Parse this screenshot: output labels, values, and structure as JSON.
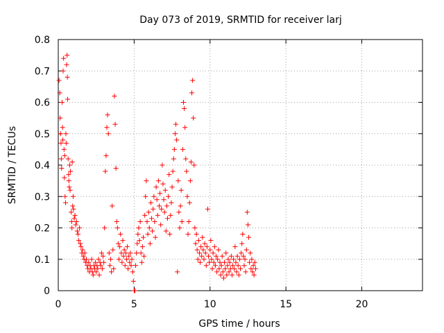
{
  "chart_data": {
    "type": "scatter",
    "title": "Day 073 of 2019, SRMTID for receiver larj",
    "xlabel": "GPS time / hours",
    "ylabel": "SRMTID / TECUs",
    "xlim": [
      0,
      24
    ],
    "ylim": [
      0,
      0.8
    ],
    "xticks": [
      0,
      5,
      10,
      15,
      20
    ],
    "yticks": [
      0,
      0.1,
      0.2,
      0.3,
      0.4,
      0.5,
      0.6,
      0.7,
      0.8
    ],
    "xtick_labels": [
      "0",
      "5",
      "10",
      "15",
      "20"
    ],
    "ytick_labels": [
      "0",
      "0.1",
      "0.2",
      "0.3",
      "0.4",
      "0.5",
      "0.6",
      "0.7",
      "0.8"
    ],
    "grid": true,
    "marker": "+",
    "color": "#ff0000",
    "series": [
      {
        "name": "SRMTID",
        "points": [
          [
            0.05,
            0.67
          ],
          [
            0.1,
            0.63
          ],
          [
            0.12,
            0.55
          ],
          [
            0.15,
            0.5
          ],
          [
            0.18,
            0.47
          ],
          [
            0.2,
            0.42
          ],
          [
            0.22,
            0.39
          ],
          [
            0.25,
            0.6
          ],
          [
            0.28,
            0.52
          ],
          [
            0.3,
            0.48
          ],
          [
            0.32,
            0.7
          ],
          [
            0.35,
            0.74
          ],
          [
            0.38,
            0.45
          ],
          [
            0.4,
            0.36
          ],
          [
            0.42,
            0.43
          ],
          [
            0.45,
            0.3
          ],
          [
            0.48,
            0.28
          ],
          [
            0.5,
            0.5
          ],
          [
            0.52,
            0.47
          ],
          [
            0.55,
            0.72
          ],
          [
            0.58,
            0.75
          ],
          [
            0.6,
            0.68
          ],
          [
            0.62,
            0.61
          ],
          [
            0.65,
            0.42
          ],
          [
            0.68,
            0.37
          ],
          [
            0.7,
            0.35
          ],
          [
            0.72,
            0.33
          ],
          [
            0.75,
            0.4
          ],
          [
            0.78,
            0.32
          ],
          [
            0.8,
            0.38
          ],
          [
            0.85,
            0.25
          ],
          [
            0.88,
            0.22
          ],
          [
            0.9,
            0.2
          ],
          [
            0.92,
            0.41
          ],
          [
            0.95,
            0.27
          ],
          [
            0.98,
            0.3
          ],
          [
            1.0,
            0.26
          ],
          [
            1.05,
            0.23
          ],
          [
            1.1,
            0.24
          ],
          [
            1.15,
            0.21
          ],
          [
            1.2,
            0.22
          ],
          [
            1.25,
            0.19
          ],
          [
            1.3,
            0.18
          ],
          [
            1.35,
            0.16
          ],
          [
            1.4,
            0.2
          ],
          [
            1.45,
            0.15
          ],
          [
            1.5,
            0.14
          ],
          [
            1.55,
            0.12
          ],
          [
            1.6,
            0.13
          ],
          [
            1.65,
            0.11
          ],
          [
            1.7,
            0.1
          ],
          [
            1.75,
            0.12
          ],
          [
            1.8,
            0.09
          ],
          [
            1.85,
            0.1
          ],
          [
            1.9,
            0.08
          ],
          [
            1.95,
            0.07
          ],
          [
            2.0,
            0.09
          ],
          [
            2.05,
            0.06
          ],
          [
            2.1,
            0.08
          ],
          [
            2.15,
            0.07
          ],
          [
            2.2,
            0.1
          ],
          [
            2.25,
            0.06
          ],
          [
            2.3,
            0.05
          ],
          [
            2.35,
            0.08
          ],
          [
            2.4,
            0.07
          ],
          [
            2.45,
            0.09
          ],
          [
            2.5,
            0.06
          ],
          [
            2.55,
            0.08
          ],
          [
            2.6,
            0.07
          ],
          [
            2.65,
            0.1
          ],
          [
            2.7,
            0.05
          ],
          [
            2.75,
            0.09
          ],
          [
            2.8,
            0.08
          ],
          [
            2.85,
            0.12
          ],
          [
            2.9,
            0.07
          ],
          [
            2.95,
            0.11
          ],
          [
            3.0,
            0.09
          ],
          [
            3.05,
            0.2
          ],
          [
            3.1,
            0.38
          ],
          [
            3.15,
            0.43
          ],
          [
            3.2,
            0.52
          ],
          [
            3.25,
            0.56
          ],
          [
            3.3,
            0.5
          ],
          [
            3.35,
            0.12
          ],
          [
            3.4,
            0.08
          ],
          [
            3.45,
            0.1
          ],
          [
            3.5,
            0.06
          ],
          [
            3.55,
            0.27
          ],
          [
            3.6,
            0.13
          ],
          [
            3.65,
            0.07
          ],
          [
            3.7,
            0.62
          ],
          [
            3.75,
            0.53
          ],
          [
            3.8,
            0.39
          ],
          [
            3.85,
            0.22
          ],
          [
            3.9,
            0.2
          ],
          [
            3.95,
            0.15
          ],
          [
            4.0,
            0.1
          ],
          [
            4.05,
            0.14
          ],
          [
            4.1,
            0.18
          ],
          [
            4.15,
            0.12
          ],
          [
            4.2,
            0.09
          ],
          [
            4.25,
            0.16
          ],
          [
            4.3,
            0.11
          ],
          [
            4.35,
            0.13
          ],
          [
            4.4,
            0.08
          ],
          [
            4.45,
            0.12
          ],
          [
            4.5,
            0.1
          ],
          [
            4.55,
            0.14
          ],
          [
            4.6,
            0.07
          ],
          [
            4.65,
            0.11
          ],
          [
            4.7,
            0.09
          ],
          [
            4.75,
            0.12
          ],
          [
            4.8,
            0.08
          ],
          [
            4.85,
            0.1
          ],
          [
            4.9,
            0.06
          ],
          [
            4.95,
            0.03
          ],
          [
            5.0,
            0.0
          ],
          [
            5.05,
            0.0
          ],
          [
            5.1,
            0.08
          ],
          [
            5.15,
            0.12
          ],
          [
            5.2,
            0.15
          ],
          [
            5.25,
            0.18
          ],
          [
            5.3,
            0.2
          ],
          [
            5.35,
            0.16
          ],
          [
            5.4,
            0.22
          ],
          [
            5.45,
            0.12
          ],
          [
            5.5,
            0.09
          ],
          [
            5.55,
            0.14
          ],
          [
            5.6,
            0.17
          ],
          [
            5.65,
            0.11
          ],
          [
            5.7,
            0.24
          ],
          [
            5.75,
            0.3
          ],
          [
            5.8,
            0.35
          ],
          [
            5.85,
            0.22
          ],
          [
            5.9,
            0.18
          ],
          [
            5.95,
            0.25
          ],
          [
            6.0,
            0.2
          ],
          [
            6.05,
            0.15
          ],
          [
            6.1,
            0.28
          ],
          [
            6.15,
            0.23
          ],
          [
            6.2,
            0.19
          ],
          [
            6.25,
            0.26
          ],
          [
            6.3,
            0.3
          ],
          [
            6.35,
            0.22
          ],
          [
            6.4,
            0.17
          ],
          [
            6.45,
            0.33
          ],
          [
            6.5,
            0.29
          ],
          [
            6.55,
            0.24
          ],
          [
            6.6,
            0.35
          ],
          [
            6.65,
            0.27
          ],
          [
            6.7,
            0.31
          ],
          [
            6.75,
            0.21
          ],
          [
            6.8,
            0.26
          ],
          [
            6.85,
            0.4
          ],
          [
            6.9,
            0.34
          ],
          [
            6.95,
            0.29
          ],
          [
            7.0,
            0.25
          ],
          [
            7.05,
            0.32
          ],
          [
            7.1,
            0.19
          ],
          [
            7.15,
            0.27
          ],
          [
            7.2,
            0.23
          ],
          [
            7.25,
            0.3
          ],
          [
            7.3,
            0.37
          ],
          [
            7.35,
            0.18
          ],
          [
            7.4,
            0.24
          ],
          [
            7.45,
            0.28
          ],
          [
            7.5,
            0.33
          ],
          [
            7.55,
            0.38
          ],
          [
            7.6,
            0.42
          ],
          [
            7.65,
            0.45
          ],
          [
            7.7,
            0.5
          ],
          [
            7.75,
            0.53
          ],
          [
            7.8,
            0.48
          ],
          [
            7.85,
            0.06
          ],
          [
            7.9,
            0.35
          ],
          [
            7.95,
            0.25
          ],
          [
            8.0,
            0.2
          ],
          [
            8.05,
            0.27
          ],
          [
            8.1,
            0.32
          ],
          [
            8.15,
            0.22
          ],
          [
            8.2,
            0.45
          ],
          [
            8.25,
            0.6
          ],
          [
            8.3,
            0.58
          ],
          [
            8.35,
            0.52
          ],
          [
            8.4,
            0.42
          ],
          [
            8.45,
            0.38
          ],
          [
            8.5,
            0.3
          ],
          [
            8.55,
            0.18
          ],
          [
            8.6,
            0.22
          ],
          [
            8.65,
            0.28
          ],
          [
            8.7,
            0.35
          ],
          [
            8.75,
            0.41
          ],
          [
            8.8,
            0.63
          ],
          [
            8.85,
            0.67
          ],
          [
            8.9,
            0.55
          ],
          [
            8.95,
            0.4
          ],
          [
            9.0,
            0.2
          ],
          [
            9.05,
            0.15
          ],
          [
            9.1,
            0.18
          ],
          [
            9.15,
            0.13
          ],
          [
            9.2,
            0.1
          ],
          [
            9.25,
            0.16
          ],
          [
            9.3,
            0.12
          ],
          [
            9.35,
            0.09
          ],
          [
            9.4,
            0.14
          ],
          [
            9.45,
            0.11
          ],
          [
            9.5,
            0.17
          ],
          [
            9.55,
            0.13
          ],
          [
            9.6,
            0.1
          ],
          [
            9.65,
            0.15
          ],
          [
            9.7,
            0.12
          ],
          [
            9.75,
            0.08
          ],
          [
            9.8,
            0.14
          ],
          [
            9.85,
            0.26
          ],
          [
            9.9,
            0.11
          ],
          [
            9.95,
            0.09
          ],
          [
            10.0,
            0.13
          ],
          [
            10.05,
            0.16
          ],
          [
            10.1,
            0.1
          ],
          [
            10.15,
            0.07
          ],
          [
            10.2,
            0.12
          ],
          [
            10.25,
            0.09
          ],
          [
            10.3,
            0.14
          ],
          [
            10.35,
            0.08
          ],
          [
            10.4,
            0.11
          ],
          [
            10.45,
            0.06
          ],
          [
            10.5,
            0.1
          ],
          [
            10.55,
            0.13
          ],
          [
            10.6,
            0.07
          ],
          [
            10.65,
            0.09
          ],
          [
            10.7,
            0.05
          ],
          [
            10.75,
            0.08
          ],
          [
            10.8,
            0.11
          ],
          [
            10.85,
            0.06
          ],
          [
            10.9,
            0.04
          ],
          [
            10.95,
            0.09
          ],
          [
            11.0,
            0.07
          ],
          [
            11.05,
            0.12
          ],
          [
            11.1,
            0.05
          ],
          [
            11.15,
            0.08
          ],
          [
            11.2,
            0.1
          ],
          [
            11.25,
            0.06
          ],
          [
            11.3,
            0.09
          ],
          [
            11.35,
            0.07
          ],
          [
            11.4,
            0.11
          ],
          [
            11.45,
            0.05
          ],
          [
            11.5,
            0.08
          ],
          [
            11.55,
            0.1
          ],
          [
            11.6,
            0.07
          ],
          [
            11.65,
            0.14
          ],
          [
            11.7,
            0.09
          ],
          [
            11.75,
            0.06
          ],
          [
            11.8,
            0.11
          ],
          [
            11.85,
            0.08
          ],
          [
            11.9,
            0.05
          ],
          [
            11.95,
            0.1
          ],
          [
            12.0,
            0.07
          ],
          [
            12.05,
            0.12
          ],
          [
            12.1,
            0.15
          ],
          [
            12.15,
            0.18
          ],
          [
            12.2,
            0.11
          ],
          [
            12.25,
            0.08
          ],
          [
            12.3,
            0.1
          ],
          [
            12.35,
            0.06
          ],
          [
            12.4,
            0.13
          ],
          [
            12.45,
            0.25
          ],
          [
            12.5,
            0.21
          ],
          [
            12.55,
            0.17
          ],
          [
            12.6,
            0.09
          ],
          [
            12.65,
            0.12
          ],
          [
            12.7,
            0.07
          ],
          [
            12.75,
            0.1
          ],
          [
            12.8,
            0.06
          ],
          [
            12.85,
            0.08
          ],
          [
            12.9,
            0.05
          ],
          [
            12.95,
            0.09
          ],
          [
            13.0,
            0.07
          ]
        ]
      }
    ]
  }
}
